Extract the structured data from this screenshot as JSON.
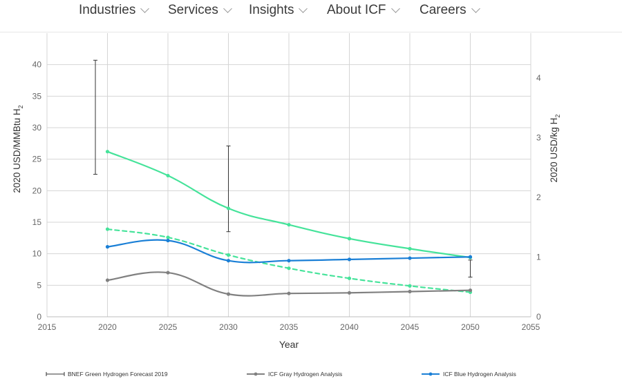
{
  "nav": {
    "items": [
      {
        "label": "Industries"
      },
      {
        "label": "Services"
      },
      {
        "label": "Insights"
      },
      {
        "label": "About ICF"
      },
      {
        "label": "Careers"
      }
    ]
  },
  "colors": {
    "green": "#45e39a",
    "blue": "#1a7fd6",
    "gray": "#808080",
    "bnef": "#333333",
    "grid": "#d4d4d4"
  },
  "chart_data": {
    "type": "line",
    "title": "",
    "xlabel": "Year",
    "ylabel": "2020 USD/MMBtu H",
    "ylabel_subscript": "2",
    "y2label": "2020 USD/kg H",
    "y2label_subscript": "2",
    "xlim": [
      2015,
      2055
    ],
    "ylim": [
      0,
      45
    ],
    "y2lim": [
      0,
      4.75
    ],
    "xticks": [
      2015,
      2020,
      2025,
      2030,
      2035,
      2040,
      2045,
      2050,
      2055
    ],
    "yticks": [
      0,
      5,
      10,
      15,
      20,
      25,
      30,
      35,
      40
    ],
    "y2ticks": [
      0,
      1,
      2,
      3,
      4
    ],
    "grid": true,
    "legend_position": "bottom",
    "series": [
      {
        "key": "green_solid",
        "style": "solid",
        "color": "#45e39a",
        "x": [
          2020,
          2025,
          2030,
          2035,
          2040,
          2045,
          2050
        ],
        "y": [
          26.2,
          22.4,
          17.2,
          14.6,
          12.4,
          10.8,
          9.4
        ]
      },
      {
        "key": "green_dashed",
        "style": "dashed",
        "color": "#45e39a",
        "x": [
          2020,
          2025,
          2030,
          2035,
          2040,
          2045,
          2050
        ],
        "y": [
          13.9,
          12.6,
          9.8,
          7.7,
          6.1,
          4.9,
          3.9
        ]
      },
      {
        "key": "blue",
        "name": "ICF Blue Hydrogen Analysis",
        "style": "solid",
        "color": "#1a7fd6",
        "x": [
          2020,
          2025,
          2030,
          2035,
          2040,
          2045,
          2050
        ],
        "y": [
          11.1,
          12.1,
          8.9,
          8.9,
          9.1,
          9.3,
          9.5
        ]
      },
      {
        "key": "gray",
        "name": "ICF Gray Hydrogen Analysis",
        "style": "solid",
        "color": "#808080",
        "x": [
          2020,
          2025,
          2030,
          2035,
          2040,
          2045,
          2050
        ],
        "y": [
          5.8,
          7.0,
          3.6,
          3.7,
          3.8,
          4.0,
          4.2
        ]
      }
    ],
    "error_bars": {
      "name": "BNEF Green Hydrogen Forecast 2019",
      "items": [
        {
          "x": 2019,
          "low": 22.6,
          "high": 40.7
        },
        {
          "x": 2030,
          "low": 13.5,
          "high": 27.1
        },
        {
          "x": 2050,
          "low": 6.3,
          "high": 9.0
        }
      ]
    },
    "legend": [
      {
        "key": "bnef",
        "label": "BNEF Green Hydrogen Forecast 2019"
      },
      {
        "key": "gray",
        "label": "ICF Gray Hydrogen Analysis"
      },
      {
        "key": "blue",
        "label": "ICF Blue Hydrogen Analysis"
      }
    ]
  }
}
